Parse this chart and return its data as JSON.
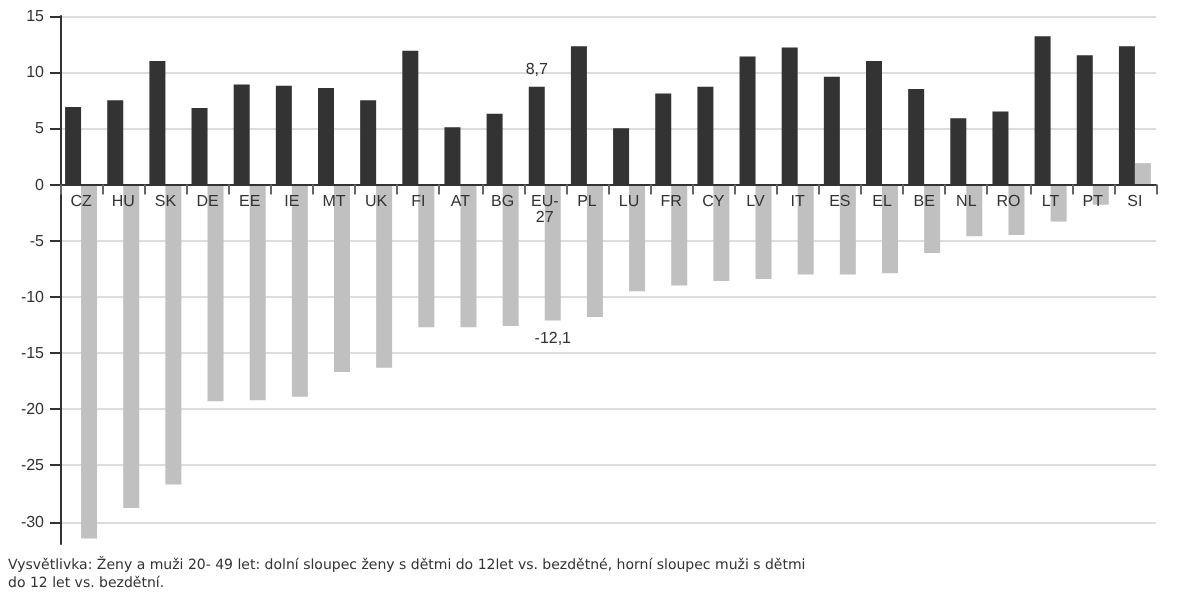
{
  "chart_data": {
    "type": "bar",
    "categories": [
      "CZ",
      "HU",
      "SK",
      "DE",
      "EE",
      "IE",
      "MT",
      "UK",
      "FI",
      "AT",
      "BG",
      "EU-27",
      "PL",
      "LU",
      "FR",
      "CY",
      "LV",
      "IT",
      "ES",
      "EL",
      "BE",
      "NL",
      "RO",
      "LT",
      "PT",
      "SI"
    ],
    "series": [
      {
        "color": "#333333",
        "values": [
          6.9,
          7.5,
          11,
          6.8,
          8.9,
          8.8,
          8.6,
          7.5,
          11.9,
          5.1,
          6.3,
          8.7,
          12.3,
          5.0,
          8.1,
          8.7,
          11.4,
          12.2,
          9.6,
          11.0,
          8.5,
          5.9,
          6.5,
          13.2,
          11.5,
          12.3
        ],
        "value_labels": [
          null,
          null,
          null,
          null,
          null,
          null,
          null,
          null,
          null,
          null,
          null,
          "8,7",
          null,
          null,
          null,
          null,
          null,
          null,
          null,
          null,
          null,
          null,
          null,
          null,
          null,
          null
        ]
      },
      {
        "color": "#c0c0c0",
        "values": [
          -31.5,
          -28.8,
          -26.7,
          -19.3,
          -19.2,
          -18.9,
          -16.7,
          -16.3,
          -12.7,
          -12.7,
          -12.6,
          -12.1,
          -11.8,
          -9.5,
          -9.0,
          -8.6,
          -8.4,
          -8.0,
          -8.0,
          -7.9,
          -6.1,
          -4.6,
          -4.5,
          -3.3,
          -1.8,
          1.9
        ],
        "value_labels": [
          null,
          null,
          null,
          null,
          null,
          null,
          null,
          null,
          null,
          null,
          null,
          "-12,1",
          null,
          null,
          null,
          null,
          null,
          null,
          null,
          null,
          null,
          null,
          null,
          null,
          null,
          null
        ]
      }
    ],
    "ylim": [
      -32,
      15
    ],
    "yticks": [
      -30,
      -25,
      -20,
      -15,
      -10,
      -5,
      0,
      5,
      10,
      15
    ],
    "grid": "y",
    "annotations": [
      "Vysvětlivka: Ženy a muži 20- 49 let: dolní sloupec ženy s dětmi do 12let vs. bezdětné, horní sloupec muži s dětmi do 12 let vs. bezdětní."
    ]
  }
}
